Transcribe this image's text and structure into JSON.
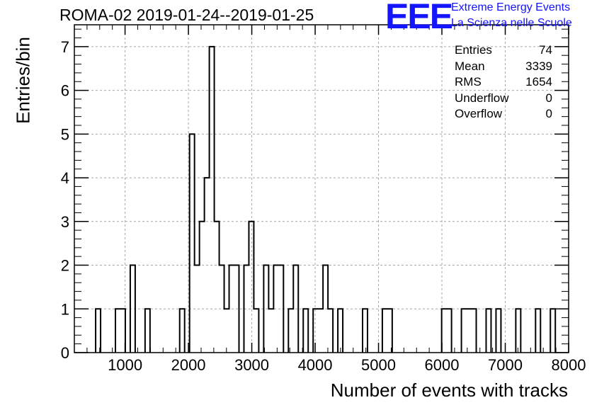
{
  "title": "ROMA-02 2019-01-24--2019-01-25",
  "logo": {
    "text": "EEE",
    "line1": "Extreme Energy Events",
    "line2": "La Scienza nelle Scuole",
    "color": "#1414ff"
  },
  "stats": [
    {
      "label": "Entries",
      "value": "74"
    },
    {
      "label": "Mean",
      "value": "3339"
    },
    {
      "label": "RMS",
      "value": "1654"
    },
    {
      "label": "Underflow",
      "value": "0"
    },
    {
      "label": "Overflow",
      "value": "0"
    }
  ],
  "chart_data": {
    "type": "histogram",
    "xlabel": "Number of events with tracks",
    "ylabel": "Entries/bin",
    "xlim": [
      200,
      8000
    ],
    "ylim": [
      0,
      7.5
    ],
    "xticks": [
      "1000",
      "2000",
      "3000",
      "4000",
      "5000",
      "6000",
      "7000",
      "8000"
    ],
    "yticks": [
      "0",
      "1",
      "2",
      "3",
      "4",
      "5",
      "6",
      "7"
    ],
    "grid": true,
    "bin_width": 78,
    "bins": [
      {
        "x0": 536,
        "y": 1
      },
      {
        "x0": 848,
        "y": 1
      },
      {
        "x0": 926,
        "y": 1
      },
      {
        "x0": 1082,
        "y": 2
      },
      {
        "x0": 1316,
        "y": 1
      },
      {
        "x0": 1862,
        "y": 1
      },
      {
        "x0": 2018,
        "y": 5
      },
      {
        "x0": 2096,
        "y": 2
      },
      {
        "x0": 2174,
        "y": 3
      },
      {
        "x0": 2252,
        "y": 4
      },
      {
        "x0": 2330,
        "y": 7
      },
      {
        "x0": 2408,
        "y": 3
      },
      {
        "x0": 2486,
        "y": 2
      },
      {
        "x0": 2564,
        "y": 1
      },
      {
        "x0": 2642,
        "y": 2
      },
      {
        "x0": 2720,
        "y": 2
      },
      {
        "x0": 2876,
        "y": 2
      },
      {
        "x0": 2954,
        "y": 3
      },
      {
        "x0": 3032,
        "y": 1
      },
      {
        "x0": 3188,
        "y": 2
      },
      {
        "x0": 3266,
        "y": 1
      },
      {
        "x0": 3344,
        "y": 2
      },
      {
        "x0": 3422,
        "y": 2
      },
      {
        "x0": 3578,
        "y": 1
      },
      {
        "x0": 3656,
        "y": 2
      },
      {
        "x0": 3812,
        "y": 1
      },
      {
        "x0": 3968,
        "y": 1
      },
      {
        "x0": 4046,
        "y": 1
      },
      {
        "x0": 4124,
        "y": 2
      },
      {
        "x0": 4202,
        "y": 1
      },
      {
        "x0": 4358,
        "y": 1
      },
      {
        "x0": 4748,
        "y": 1
      },
      {
        "x0": 5060,
        "y": 1
      },
      {
        "x0": 5138,
        "y": 1
      },
      {
        "x0": 5996,
        "y": 1
      },
      {
        "x0": 6074,
        "y": 1
      },
      {
        "x0": 6308,
        "y": 1
      },
      {
        "x0": 6386,
        "y": 1
      },
      {
        "x0": 6464,
        "y": 1
      },
      {
        "x0": 6698,
        "y": 1
      },
      {
        "x0": 6854,
        "y": 1
      },
      {
        "x0": 7166,
        "y": 1
      },
      {
        "x0": 7478,
        "y": 1
      },
      {
        "x0": 7712,
        "y": 1
      }
    ]
  }
}
